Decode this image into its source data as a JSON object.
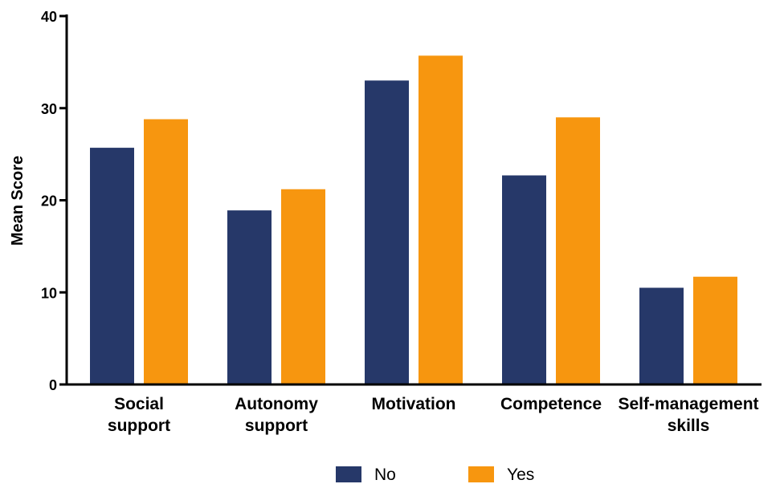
{
  "chart_data": {
    "type": "bar",
    "title": "",
    "xlabel": "",
    "ylabel": "Mean Score",
    "ylim": [
      0,
      40
    ],
    "yticks": [
      0,
      10,
      20,
      30,
      40
    ],
    "grid": false,
    "legend_position": "bottom",
    "categories": [
      [
        "Social",
        "support"
      ],
      [
        "Autonomy",
        "support"
      ],
      [
        "Motivation"
      ],
      [
        "Competence"
      ],
      [
        "Self-management",
        "skills"
      ]
    ],
    "series": [
      {
        "name": "No",
        "color": "#263869",
        "values": [
          25.7,
          18.9,
          33.0,
          22.7,
          10.5
        ]
      },
      {
        "name": "Yes",
        "color": "#F7960F",
        "values": [
          28.8,
          21.2,
          35.7,
          29.0,
          11.7
        ]
      }
    ]
  }
}
